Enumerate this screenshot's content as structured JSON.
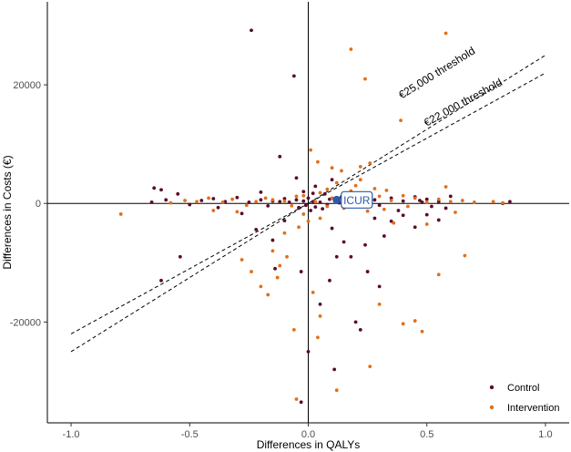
{
  "chart_data": {
    "type": "scatter",
    "xlabel": "Differences in QALYs",
    "ylabel": "Differences in Costs (€)",
    "xlim": [
      -1.1,
      1.1
    ],
    "ylim": [
      -37000,
      34000
    ],
    "x_ticks": [
      {
        "value": -1.0,
        "label": "-1.0"
      },
      {
        "value": -0.5,
        "label": "-0.5"
      },
      {
        "value": 0.0,
        "label": "0.0"
      },
      {
        "value": 0.5,
        "label": "0.5"
      },
      {
        "value": 1.0,
        "label": "1.0"
      }
    ],
    "y_ticks": [
      {
        "value": -20000,
        "label": "-20000"
      },
      {
        "value": 0,
        "label": "0"
      },
      {
        "value": 20000,
        "label": "20000"
      }
    ],
    "grid": false,
    "legend_position": "bottom-right",
    "series": [
      {
        "name": "Control",
        "color": "#5c0a2a",
        "points": [
          [
            -0.24,
            29200
          ],
          [
            -0.06,
            21500
          ],
          [
            -0.65,
            2600
          ],
          [
            -0.62,
            2300
          ],
          [
            -0.55,
            1600
          ],
          [
            -0.66,
            200
          ],
          [
            -0.5,
            -200
          ],
          [
            -0.45,
            500
          ],
          [
            -0.4,
            800
          ],
          [
            -0.35,
            300
          ],
          [
            -0.3,
            1000
          ],
          [
            -0.25,
            200
          ],
          [
            -0.2,
            600
          ],
          [
            -0.17,
            -400
          ],
          [
            -0.15,
            400
          ],
          [
            -0.12,
            300
          ],
          [
            -0.1,
            800
          ],
          [
            -0.08,
            200
          ],
          [
            -0.05,
            600
          ],
          [
            -0.04,
            -700
          ],
          [
            -0.02,
            400
          ],
          [
            0.0,
            900
          ],
          [
            0.02,
            1700
          ],
          [
            0.03,
            2900
          ],
          [
            0.01,
            -1200
          ],
          [
            -0.12,
            7900
          ],
          [
            -0.2,
            1900
          ],
          [
            -0.05,
            4300
          ],
          [
            -0.54,
            -9000
          ],
          [
            -0.62,
            -13000
          ],
          [
            -0.14,
            -11000
          ],
          [
            -0.03,
            -11500
          ],
          [
            0.1,
            4000
          ],
          [
            0.15,
            500
          ],
          [
            0.2,
            1200
          ],
          [
            0.25,
            300
          ],
          [
            0.3,
            -300
          ],
          [
            0.35,
            900
          ],
          [
            0.4,
            400
          ],
          [
            0.45,
            1100
          ],
          [
            0.48,
            200
          ],
          [
            0.5,
            700
          ],
          [
            0.52,
            -500
          ],
          [
            0.55,
            300
          ],
          [
            0.58,
            -800
          ],
          [
            0.85,
            300
          ],
          [
            0.82,
            0
          ],
          [
            0.6,
            1200
          ],
          [
            0.1,
            -4200
          ],
          [
            0.15,
            -6500
          ],
          [
            0.18,
            -9000
          ],
          [
            0.25,
            -11500
          ],
          [
            0.28,
            -2500
          ],
          [
            0.32,
            -5500
          ],
          [
            0.3,
            -14000
          ],
          [
            0.2,
            -20000
          ],
          [
            0.22,
            -21300
          ],
          [
            0.11,
            -28000
          ],
          [
            0.0,
            -25000
          ],
          [
            -0.03,
            -33500
          ],
          [
            0.05,
            -17000
          ],
          [
            0.09,
            -13000
          ],
          [
            0.12,
            -9000
          ],
          [
            0.24,
            -7000
          ],
          [
            0.35,
            -3000
          ],
          [
            0.4,
            -2000
          ],
          [
            0.45,
            -4000
          ],
          [
            0.05,
            200
          ],
          [
            0.08,
            -200
          ],
          [
            0.13,
            100
          ],
          [
            -0.02,
            2000
          ],
          [
            -0.22,
            -4400
          ],
          [
            -0.15,
            -6200
          ],
          [
            -0.28,
            -1700
          ],
          [
            -0.1,
            -2900
          ],
          [
            0.07,
            1600
          ],
          [
            0.18,
            -300
          ],
          [
            0.28,
            600
          ],
          [
            0.38,
            -1200
          ],
          [
            0.5,
            -1900
          ],
          [
            0.55,
            -2800
          ],
          [
            0.47,
            500
          ],
          [
            -0.6,
            600
          ],
          [
            -0.38,
            -700
          ],
          [
            0.03,
            -600
          ],
          [
            -0.01,
            -300
          ],
          [
            0.02,
            300
          ],
          [
            0.09,
            700
          ],
          [
            0.06,
            -900
          ],
          [
            0.14,
            1100
          ]
        ]
      },
      {
        "name": "Intervention",
        "color": "#e0701a",
        "points": [
          [
            0.58,
            28700
          ],
          [
            0.18,
            26000
          ],
          [
            0.24,
            21000
          ],
          [
            0.39,
            14000
          ],
          [
            -0.79,
            -1800
          ],
          [
            0.01,
            9000
          ],
          [
            0.04,
            7000
          ],
          [
            0.1,
            6000
          ],
          [
            0.14,
            5500
          ],
          [
            0.2,
            3000
          ],
          [
            0.22,
            4000
          ],
          [
            0.28,
            2500
          ],
          [
            0.3,
            1200
          ],
          [
            0.26,
            6800
          ],
          [
            0.22,
            6200
          ],
          [
            0.12,
            3500
          ],
          [
            0.08,
            2400
          ],
          [
            0.05,
            1800
          ],
          [
            0.16,
            1200
          ],
          [
            -0.02,
            1300
          ],
          [
            -0.05,
            1200
          ],
          [
            -0.1,
            400
          ],
          [
            -0.15,
            600
          ],
          [
            -0.18,
            900
          ],
          [
            -0.22,
            300
          ],
          [
            -0.26,
            -300
          ],
          [
            -0.32,
            700
          ],
          [
            -0.36,
            200
          ],
          [
            -0.42,
            900
          ],
          [
            -0.47,
            300
          ],
          [
            -0.52,
            500
          ],
          [
            -0.58,
            100
          ],
          [
            0.35,
            500
          ],
          [
            0.4,
            1300
          ],
          [
            0.45,
            900
          ],
          [
            0.5,
            200
          ],
          [
            0.55,
            700
          ],
          [
            0.6,
            300
          ],
          [
            0.65,
            500
          ],
          [
            0.7,
            200
          ],
          [
            0.78,
            300
          ],
          [
            0.82,
            100
          ],
          [
            0.58,
            2800
          ],
          [
            0.62,
            -1500
          ],
          [
            0.66,
            -8800
          ],
          [
            0.55,
            -12000
          ],
          [
            0.4,
            -20300
          ],
          [
            0.45,
            -19800
          ],
          [
            0.48,
            -21600
          ],
          [
            0.3,
            -17000
          ],
          [
            0.26,
            -27500
          ],
          [
            0.12,
            -31500
          ],
          [
            -0.05,
            -33000
          ],
          [
            0.05,
            -19000
          ],
          [
            -0.06,
            -21300
          ],
          [
            0.04,
            -22600
          ],
          [
            -0.2,
            -14000
          ],
          [
            -0.17,
            -15400
          ],
          [
            -0.12,
            -10500
          ],
          [
            -0.09,
            -9000
          ],
          [
            -0.15,
            -8000
          ],
          [
            -0.1,
            -5000
          ],
          [
            -0.04,
            -4000
          ],
          [
            0.0,
            -3000
          ],
          [
            0.05,
            -2500
          ],
          [
            -0.13,
            -12500
          ],
          [
            -0.24,
            -11500
          ],
          [
            -0.28,
            -9500
          ],
          [
            0.02,
            -15000
          ],
          [
            -0.02,
            -1800
          ],
          [
            0.08,
            -500
          ],
          [
            0.15,
            -800
          ],
          [
            0.25,
            -1300
          ],
          [
            0.32,
            -1000
          ],
          [
            0.36,
            -3300
          ],
          [
            0.5,
            -3500
          ],
          [
            0.42,
            -500
          ],
          [
            0.1,
            900
          ],
          [
            0.03,
            300
          ],
          [
            -0.07,
            -400
          ],
          [
            0.18,
            2100
          ],
          [
            0.24,
            1500
          ],
          [
            0.33,
            2200
          ],
          [
            -0.3,
            -1400
          ],
          [
            -0.4,
            -1200
          ]
        ]
      }
    ],
    "icur": {
      "label": "ICUR",
      "x": 0.12,
      "y": 600,
      "color": "#2a5aa8"
    },
    "threshold_lines": [
      {
        "label": "€25,000  threshold",
        "slope": 25000,
        "x_range": [
          -1.0,
          1.0
        ]
      },
      {
        "label": "€22,000  threshold",
        "slope": 22000,
        "x_range": [
          -1.0,
          1.0
        ]
      }
    ]
  }
}
